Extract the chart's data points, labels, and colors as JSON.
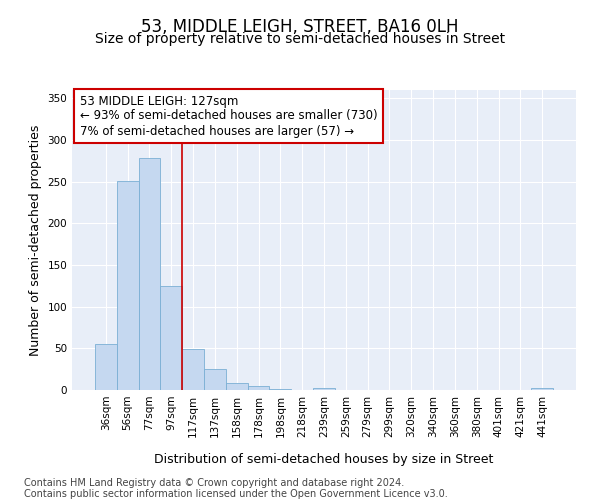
{
  "title": "53, MIDDLE LEIGH, STREET, BA16 0LH",
  "subtitle": "Size of property relative to semi-detached houses in Street",
  "xlabel": "Distribution of semi-detached houses by size in Street",
  "ylabel": "Number of semi-detached properties",
  "bar_color": "#c5d8f0",
  "bar_edge_color": "#7aafd4",
  "background_color": "#e8eef8",
  "grid_color": "#ffffff",
  "annotation_box_color": "#cc0000",
  "vline_color": "#cc0000",
  "categories": [
    "36sqm",
    "56sqm",
    "77sqm",
    "97sqm",
    "117sqm",
    "137sqm",
    "158sqm",
    "178sqm",
    "198sqm",
    "218sqm",
    "239sqm",
    "259sqm",
    "279sqm",
    "299sqm",
    "320sqm",
    "340sqm",
    "360sqm",
    "380sqm",
    "401sqm",
    "421sqm",
    "441sqm"
  ],
  "values": [
    55,
    251,
    278,
    125,
    49,
    25,
    8,
    5,
    1,
    0,
    3,
    0,
    0,
    0,
    0,
    0,
    0,
    0,
    0,
    0,
    3
  ],
  "vline_index": 4,
  "annotation_text_line1": "53 MIDDLE LEIGH: 127sqm",
  "annotation_text_line2": "← 93% of semi-detached houses are smaller (730)",
  "annotation_text_line3": "7% of semi-detached houses are larger (57) →",
  "ylim": [
    0,
    360
  ],
  "yticks": [
    0,
    50,
    100,
    150,
    200,
    250,
    300,
    350
  ],
  "footer_line1": "Contains HM Land Registry data © Crown copyright and database right 2024.",
  "footer_line2": "Contains public sector information licensed under the Open Government Licence v3.0.",
  "title_fontsize": 12,
  "subtitle_fontsize": 10,
  "axis_label_fontsize": 9,
  "tick_fontsize": 7.5,
  "annotation_fontsize": 8.5,
  "footer_fontsize": 7
}
